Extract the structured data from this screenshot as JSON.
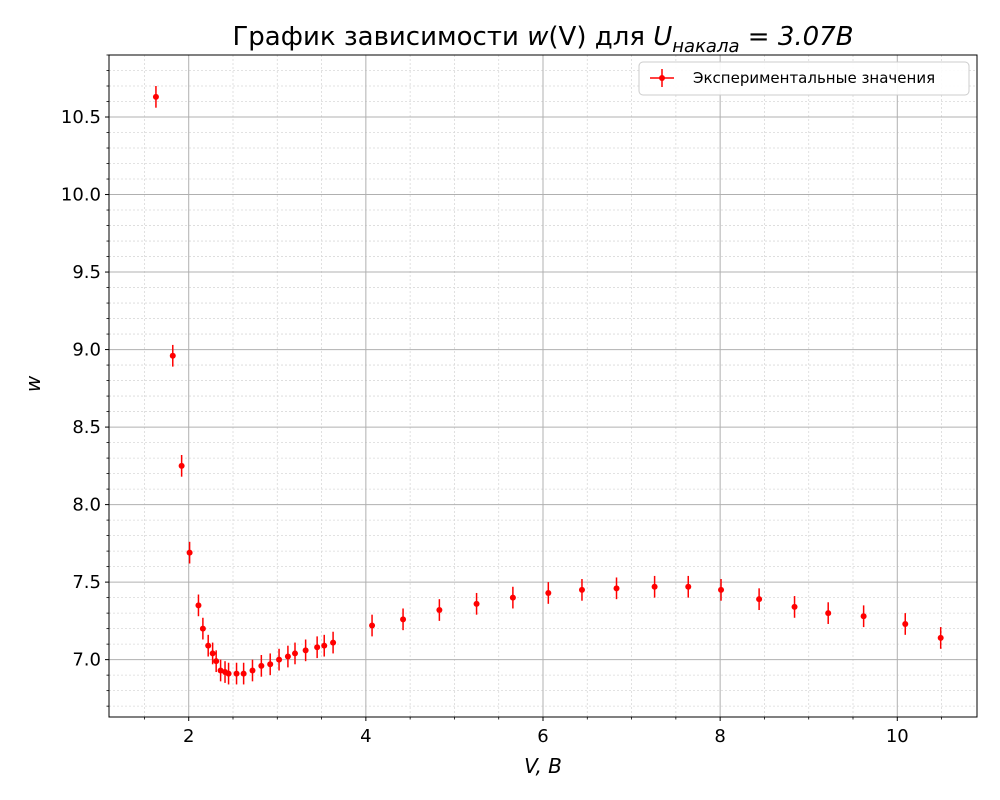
{
  "chart_data": {
    "type": "scatter",
    "title_prefix": "График зависимости ",
    "title_w": "w",
    "title_v": "(V)",
    "title_mid": " для ",
    "title_u": "U",
    "title_sub": "накала",
    "title_suffix": " = 3.07B",
    "xlabel": "V, B",
    "ylabel": "w",
    "xlim": [
      1.1,
      10.9
    ],
    "ylim": [
      6.63,
      10.9
    ],
    "x_ticks": [
      2,
      4,
      6,
      8,
      10
    ],
    "y_ticks": [
      7.0,
      7.5,
      8.0,
      8.5,
      9.0,
      9.5,
      10.0,
      10.5
    ],
    "x_tick_labels": [
      "2",
      "4",
      "6",
      "8",
      "10"
    ],
    "y_tick_labels": [
      "7.0",
      "7.5",
      "8.0",
      "8.5",
      "9.0",
      "9.5",
      "10.0",
      "10.5"
    ],
    "grid": true,
    "minor_grid": true,
    "legend_position": "top-right",
    "color": "#ff0000",
    "series": [
      {
        "name": "Экспериментальные значения",
        "x": [
          1.63,
          1.82,
          1.92,
          2.01,
          2.11,
          2.16,
          2.22,
          2.27,
          2.31,
          2.36,
          2.41,
          2.45,
          2.54,
          2.62,
          2.72,
          2.82,
          2.92,
          3.02,
          3.12,
          3.2,
          3.32,
          3.45,
          3.53,
          3.63,
          4.07,
          4.42,
          4.83,
          5.25,
          5.66,
          6.06,
          6.44,
          6.83,
          7.26,
          7.64,
          8.01,
          8.44,
          8.84,
          9.22,
          9.62,
          10.09,
          10.49
        ],
        "y": [
          10.63,
          8.96,
          8.25,
          7.69,
          7.35,
          7.2,
          7.09,
          7.04,
          6.99,
          6.93,
          6.92,
          6.91,
          6.91,
          6.91,
          6.93,
          6.96,
          6.97,
          7.0,
          7.02,
          7.04,
          7.06,
          7.08,
          7.09,
          7.11,
          7.22,
          7.26,
          7.32,
          7.36,
          7.4,
          7.43,
          7.45,
          7.46,
          7.47,
          7.47,
          7.45,
          7.39,
          7.34,
          7.3,
          7.28,
          7.23,
          7.14
        ],
        "yerr": 0.07
      }
    ]
  }
}
